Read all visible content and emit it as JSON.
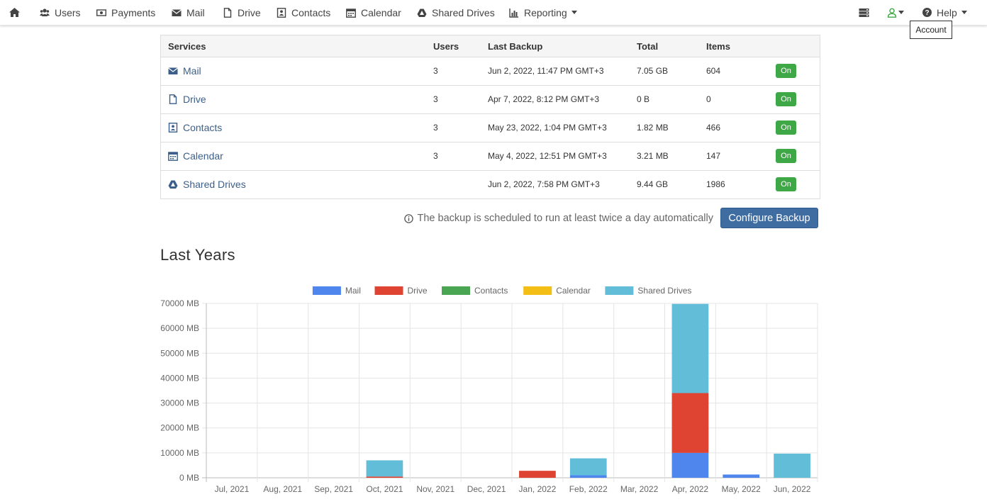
{
  "nav": {
    "items": [
      {
        "label": "",
        "icon": "home-icon"
      },
      {
        "label": "Users",
        "icon": "users-icon"
      },
      {
        "label": "Payments",
        "icon": "payments-icon"
      },
      {
        "label": "Mail",
        "icon": "mail-icon"
      },
      {
        "label": "Drive",
        "icon": "file-icon"
      },
      {
        "label": "Contacts",
        "icon": "contacts-icon"
      },
      {
        "label": "Calendar",
        "icon": "calendar-icon"
      },
      {
        "label": "Shared Drives",
        "icon": "shared-drive-icon"
      },
      {
        "label": "Reporting",
        "icon": "bar-chart-icon"
      }
    ],
    "help_label": "Help",
    "account_tooltip": "Account"
  },
  "services_table": {
    "headers": [
      "Services",
      "Users",
      "Last Backup",
      "Total",
      "Items"
    ],
    "rows": [
      {
        "service": "Mail",
        "icon": "mail-icon",
        "users": "3",
        "last_backup": "Jun 2, 2022, 11:47 PM GMT+3",
        "total": "7.05 GB",
        "items": "604",
        "status": "On"
      },
      {
        "service": "Drive",
        "icon": "file-icon",
        "users": "3",
        "last_backup": "Apr 7, 2022, 8:12 PM GMT+3",
        "total": "0 B",
        "items": "0",
        "status": "On"
      },
      {
        "service": "Contacts",
        "icon": "contacts-icon",
        "users": "3",
        "last_backup": "May 23, 2022, 1:04 PM GMT+3",
        "total": "1.82 MB",
        "items": "466",
        "status": "On"
      },
      {
        "service": "Calendar",
        "icon": "calendar-icon",
        "users": "3",
        "last_backup": "May 4, 2022, 12:51 PM GMT+3",
        "total": "3.21 MB",
        "items": "147",
        "status": "On"
      },
      {
        "service": "Shared Drives",
        "icon": "shared-drive-icon",
        "users": "",
        "last_backup": "Jun 2, 2022, 7:58 PM GMT+3",
        "total": "9.44 GB",
        "items": "1986",
        "status": "On"
      }
    ]
  },
  "info_text": "The backup is scheduled to run at least twice a day automatically",
  "configure_button": "Configure Backup",
  "section_title": "Last Years",
  "colors": {
    "accent": "#3f6da1",
    "on_badge": "#3fa846",
    "link": "#3b5f8a"
  },
  "chart_data": {
    "type": "bar",
    "stacked": true,
    "categories": [
      "Jul, 2021",
      "Aug, 2021",
      "Sep, 2021",
      "Oct, 2021",
      "Nov, 2021",
      "Dec, 2021",
      "Jan, 2022",
      "Feb, 2022",
      "Mar, 2022",
      "Apr, 2022",
      "May, 2022",
      "Jun, 2022"
    ],
    "y_ticks": [
      "0 MB",
      "10000 MB",
      "20000 MB",
      "30000 MB",
      "40000 MB",
      "50000 MB",
      "60000 MB",
      "70000 MB"
    ],
    "ylim": [
      0,
      70000
    ],
    "legend_position": "top",
    "grid": true,
    "series": [
      {
        "name": "Mail",
        "color": "#4e86ed",
        "values": [
          0,
          0,
          0,
          0,
          0,
          0,
          0,
          1000,
          0,
          10000,
          1300,
          0
        ]
      },
      {
        "name": "Drive",
        "color": "#df4331",
        "values": [
          0,
          0,
          0,
          500,
          0,
          0,
          2800,
          0,
          0,
          24000,
          0,
          0
        ]
      },
      {
        "name": "Contacts",
        "color": "#4aa652",
        "values": [
          0,
          0,
          0,
          0,
          0,
          0,
          0,
          0,
          0,
          0,
          0,
          0
        ]
      },
      {
        "name": "Calendar",
        "color": "#f3be15",
        "values": [
          0,
          0,
          0,
          0,
          0,
          0,
          0,
          0,
          0,
          0,
          0,
          0
        ]
      },
      {
        "name": "Shared Drives",
        "color": "#62bdd9",
        "values": [
          0,
          0,
          0,
          6500,
          0,
          0,
          0,
          6800,
          0,
          35800,
          0,
          9700
        ]
      }
    ]
  }
}
